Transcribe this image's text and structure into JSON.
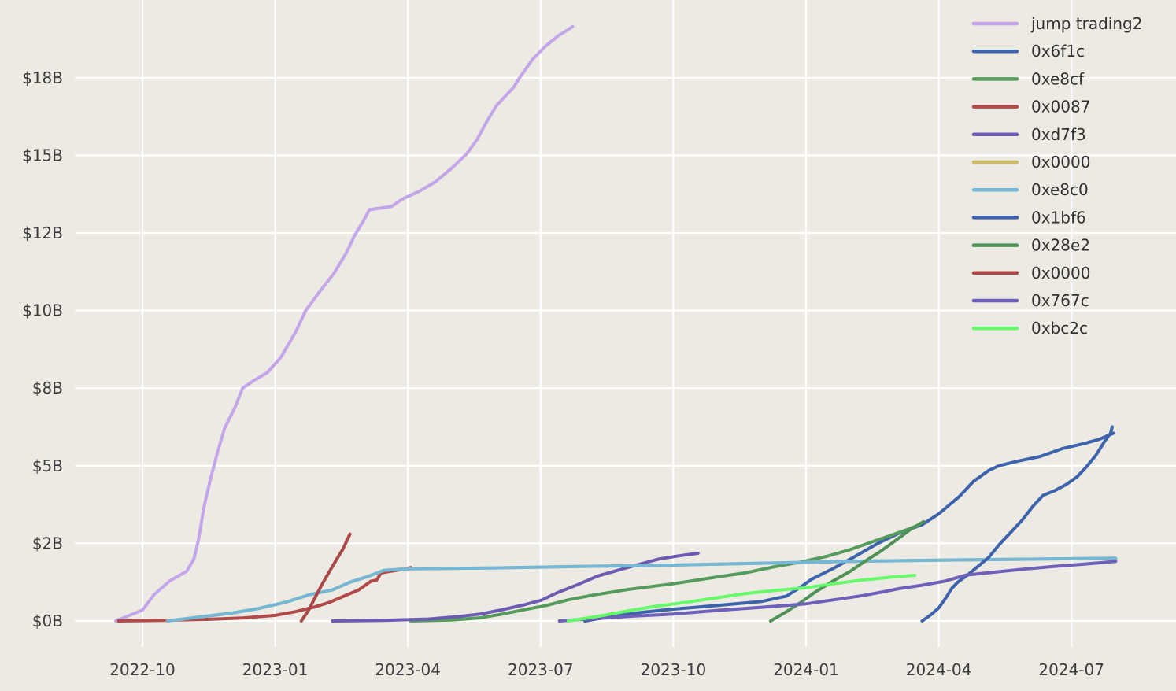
{
  "chart_data": {
    "type": "line",
    "title": "",
    "xlabel": "",
    "ylabel": "",
    "grid": true,
    "legend_position": "upper right",
    "colors": {
      "background": "#ECEAE2",
      "gridline": "#FFFFFF",
      "tick_text": "#3C3C3C",
      "legend_text": "#303030"
    },
    "x_ticks": [
      {
        "date": "2022-10-01",
        "label": "2022-10"
      },
      {
        "date": "2023-01-01",
        "label": "2023-01"
      },
      {
        "date": "2023-04-01",
        "label": "2023-04"
      },
      {
        "date": "2023-07-01",
        "label": "2023-07"
      },
      {
        "date": "2023-10-01",
        "label": "2023-10"
      },
      {
        "date": "2024-01-01",
        "label": "2024-01"
      },
      {
        "date": "2024-04-01",
        "label": "2024-04"
      },
      {
        "date": "2024-07-01",
        "label": "2024-07"
      }
    ],
    "y_ticks": [
      {
        "value": 0,
        "label": "$0B"
      },
      {
        "value": 2.5,
        "label": "$2B"
      },
      {
        "value": 5,
        "label": "$5B"
      },
      {
        "value": 7.5,
        "label": "$8B"
      },
      {
        "value": 10,
        "label": "$10B"
      },
      {
        "value": 12.5,
        "label": "$12B"
      },
      {
        "value": 15,
        "label": "$15B"
      },
      {
        "value": 17.5,
        "label": "$18B"
      }
    ],
    "y_unit": "billions USD cumulative",
    "series": [
      {
        "name": "jump trading2",
        "color": "#C3A6E9",
        "points": [
          [
            "2022-09-13",
            0
          ],
          [
            "2022-10-01",
            0.35
          ],
          [
            "2022-10-09",
            0.85
          ],
          [
            "2022-10-20",
            1.3
          ],
          [
            "2022-11-01",
            1.6
          ],
          [
            "2022-11-06",
            2.0
          ],
          [
            "2022-11-09",
            2.6
          ],
          [
            "2022-11-13",
            3.7
          ],
          [
            "2022-11-17",
            4.5
          ],
          [
            "2022-11-22",
            5.4
          ],
          [
            "2022-11-27",
            6.2
          ],
          [
            "2022-12-04",
            6.9
          ],
          [
            "2022-12-09",
            7.5
          ],
          [
            "2022-12-17",
            7.75
          ],
          [
            "2022-12-26",
            8.0
          ],
          [
            "2023-01-05",
            8.5
          ],
          [
            "2023-01-15",
            9.3
          ],
          [
            "2023-01-22",
            10.0
          ],
          [
            "2023-02-01",
            10.6
          ],
          [
            "2023-02-11",
            11.2
          ],
          [
            "2023-02-20",
            11.9
          ],
          [
            "2023-02-25",
            12.4
          ],
          [
            "2023-03-01",
            12.9
          ],
          [
            "2023-03-05",
            13.25
          ],
          [
            "2023-03-20",
            13.35
          ],
          [
            "2023-03-28",
            13.6
          ],
          [
            "2023-04-09",
            13.85
          ],
          [
            "2023-04-20",
            14.15
          ],
          [
            "2023-05-01",
            14.6
          ],
          [
            "2023-05-11",
            15.05
          ],
          [
            "2023-05-18",
            15.5
          ],
          [
            "2023-05-25",
            16.1
          ],
          [
            "2023-06-01",
            16.6
          ],
          [
            "2023-06-08",
            16.95
          ],
          [
            "2023-06-13",
            17.2
          ],
          [
            "2023-06-17",
            17.5
          ],
          [
            "2023-06-26",
            18.1
          ],
          [
            "2023-07-04",
            18.5
          ],
          [
            "2023-07-13",
            18.85
          ],
          [
            "2023-07-20",
            19.05
          ],
          [
            "2023-07-23",
            19.15
          ]
        ]
      },
      {
        "name": "0x6f1c",
        "color": "#3E63AD",
        "points": [
          [
            "2023-08-01",
            0
          ],
          [
            "2023-08-20",
            0.15
          ],
          [
            "2023-09-10",
            0.28
          ],
          [
            "2023-10-01",
            0.38
          ],
          [
            "2023-11-01",
            0.5
          ],
          [
            "2023-12-01",
            0.63
          ],
          [
            "2023-12-18",
            0.8
          ],
          [
            "2023-12-28",
            1.1
          ],
          [
            "2024-01-05",
            1.35
          ],
          [
            "2024-01-20",
            1.7
          ],
          [
            "2024-02-05",
            2.1
          ],
          [
            "2024-02-20",
            2.5
          ],
          [
            "2024-03-05",
            2.85
          ],
          [
            "2024-03-20",
            3.1
          ],
          [
            "2024-04-01",
            3.45
          ],
          [
            "2024-04-15",
            4.0
          ],
          [
            "2024-04-25",
            4.5
          ],
          [
            "2024-05-05",
            4.85
          ],
          [
            "2024-05-12",
            5.0
          ],
          [
            "2024-05-25",
            5.15
          ],
          [
            "2024-06-10",
            5.3
          ],
          [
            "2024-06-25",
            5.55
          ],
          [
            "2024-07-10",
            5.72
          ],
          [
            "2024-07-20",
            5.85
          ],
          [
            "2024-07-30",
            6.05
          ]
        ]
      },
      {
        "name": "0xe8cf",
        "color": "#559B5E",
        "points": [
          [
            "2023-04-03",
            0
          ],
          [
            "2023-05-01",
            0.03
          ],
          [
            "2023-05-20",
            0.1
          ],
          [
            "2023-06-05",
            0.22
          ],
          [
            "2023-06-20",
            0.36
          ],
          [
            "2023-07-05",
            0.5
          ],
          [
            "2023-07-20",
            0.68
          ],
          [
            "2023-08-05",
            0.82
          ],
          [
            "2023-09-01",
            1.02
          ],
          [
            "2023-10-01",
            1.2
          ],
          [
            "2023-11-01",
            1.42
          ],
          [
            "2023-11-20",
            1.55
          ],
          [
            "2023-12-10",
            1.75
          ],
          [
            "2023-12-28",
            1.9
          ],
          [
            "2024-01-15",
            2.08
          ],
          [
            "2024-02-01",
            2.3
          ],
          [
            "2024-02-18",
            2.58
          ],
          [
            "2024-03-01",
            2.8
          ],
          [
            "2024-03-10",
            2.95
          ],
          [
            "2024-03-18",
            3.1
          ]
        ]
      },
      {
        "name": "0x0087",
        "color": "#B34A4A",
        "points": [
          [
            "2022-09-15",
            0
          ],
          [
            "2022-10-15",
            0.02
          ],
          [
            "2022-11-15",
            0.05
          ],
          [
            "2022-12-10",
            0.1
          ],
          [
            "2023-01-01",
            0.18
          ],
          [
            "2023-01-15",
            0.3
          ],
          [
            "2023-01-28",
            0.45
          ],
          [
            "2023-02-08",
            0.6
          ],
          [
            "2023-02-18",
            0.8
          ],
          [
            "2023-02-28",
            1.0
          ],
          [
            "2023-03-06",
            1.28
          ],
          [
            "2023-03-10",
            1.32
          ],
          [
            "2023-03-13",
            1.55
          ],
          [
            "2023-03-22",
            1.62
          ],
          [
            "2023-04-03",
            1.72
          ]
        ]
      },
      {
        "name": "0xd7f3",
        "color": "#6B5BB2",
        "points": [
          [
            "2023-02-10",
            0
          ],
          [
            "2023-03-15",
            0.02
          ],
          [
            "2023-04-15",
            0.06
          ],
          [
            "2023-05-05",
            0.14
          ],
          [
            "2023-05-20",
            0.22
          ],
          [
            "2023-06-05",
            0.36
          ],
          [
            "2023-06-20",
            0.52
          ],
          [
            "2023-07-01",
            0.66
          ],
          [
            "2023-07-12",
            0.9
          ],
          [
            "2023-07-26",
            1.16
          ],
          [
            "2023-08-10",
            1.45
          ],
          [
            "2023-08-25",
            1.65
          ],
          [
            "2023-09-10",
            1.85
          ],
          [
            "2023-09-22",
            2.0
          ],
          [
            "2023-10-05",
            2.1
          ],
          [
            "2023-10-18",
            2.18
          ]
        ]
      },
      {
        "name": "0x0000",
        "color": "#CDB96A",
        "points": [
          [
            "2022-10-18",
            0
          ],
          [
            "2022-11-05",
            0.1
          ],
          [
            "2022-12-01",
            0.25
          ],
          [
            "2022-12-20",
            0.4
          ],
          [
            "2023-01-08",
            0.6
          ],
          [
            "2023-01-25",
            0.85
          ],
          [
            "2023-02-10",
            1.0
          ],
          [
            "2023-02-22",
            1.25
          ],
          [
            "2023-03-05",
            1.45
          ],
          [
            "2023-03-15",
            1.63
          ],
          [
            "2023-04-01",
            1.68
          ],
          [
            "2023-06-01",
            1.71
          ],
          [
            "2023-08-01",
            1.76
          ],
          [
            "2023-10-01",
            1.8
          ],
          [
            "2023-12-01",
            1.86
          ],
          [
            "2024-02-01",
            1.92
          ],
          [
            "2024-04-01",
            1.96
          ],
          [
            "2024-06-01",
            1.99
          ],
          [
            "2024-08-01",
            2.02
          ]
        ]
      },
      {
        "name": "0xe8c0",
        "color": "#74B7D6",
        "points": [
          [
            "2022-10-18",
            0
          ],
          [
            "2022-11-05",
            0.1
          ],
          [
            "2022-12-01",
            0.25
          ],
          [
            "2022-12-20",
            0.4
          ],
          [
            "2023-01-08",
            0.6
          ],
          [
            "2023-01-25",
            0.85
          ],
          [
            "2023-02-10",
            1.0
          ],
          [
            "2023-02-22",
            1.25
          ],
          [
            "2023-03-05",
            1.45
          ],
          [
            "2023-03-15",
            1.63
          ],
          [
            "2023-04-01",
            1.68
          ],
          [
            "2023-06-01",
            1.71
          ],
          [
            "2023-08-01",
            1.76
          ],
          [
            "2023-10-01",
            1.8
          ],
          [
            "2023-12-01",
            1.86
          ],
          [
            "2024-02-01",
            1.92
          ],
          [
            "2024-04-01",
            1.96
          ],
          [
            "2024-06-01",
            1.99
          ],
          [
            "2024-08-01",
            2.02
          ]
        ]
      },
      {
        "name": "0x1bf6",
        "color": "#3E63AD",
        "points": [
          [
            "2024-03-20",
            0
          ],
          [
            "2024-03-26",
            0.2
          ],
          [
            "2024-04-01",
            0.42
          ],
          [
            "2024-04-06",
            0.75
          ],
          [
            "2024-04-10",
            1.05
          ],
          [
            "2024-04-14",
            1.25
          ],
          [
            "2024-04-20",
            1.45
          ],
          [
            "2024-04-26",
            1.68
          ],
          [
            "2024-05-05",
            2.05
          ],
          [
            "2024-05-12",
            2.45
          ],
          [
            "2024-05-20",
            2.85
          ],
          [
            "2024-05-28",
            3.25
          ],
          [
            "2024-06-05",
            3.7
          ],
          [
            "2024-06-12",
            4.05
          ],
          [
            "2024-06-20",
            4.2
          ],
          [
            "2024-06-28",
            4.4
          ],
          [
            "2024-07-05",
            4.65
          ],
          [
            "2024-07-12",
            5.0
          ],
          [
            "2024-07-18",
            5.35
          ],
          [
            "2024-07-24",
            5.8
          ],
          [
            "2024-07-28",
            6.05
          ],
          [
            "2024-07-29",
            6.25
          ]
        ]
      },
      {
        "name": "0x28e2",
        "color": "#4F9257",
        "points": [
          [
            "2023-12-07",
            0
          ],
          [
            "2023-12-18",
            0.3
          ],
          [
            "2023-12-28",
            0.6
          ],
          [
            "2024-01-08",
            0.95
          ],
          [
            "2024-01-20",
            1.3
          ],
          [
            "2024-02-01",
            1.6
          ],
          [
            "2024-02-12",
            1.95
          ],
          [
            "2024-02-22",
            2.25
          ],
          [
            "2024-03-02",
            2.6
          ],
          [
            "2024-03-12",
            2.95
          ],
          [
            "2024-03-21",
            3.2
          ]
        ]
      },
      {
        "name": "0x0000",
        "color": "#AB4848",
        "points": [
          [
            "2023-01-19",
            0
          ],
          [
            "2023-01-24",
            0.35
          ],
          [
            "2023-01-29",
            0.8
          ],
          [
            "2023-02-03",
            1.2
          ],
          [
            "2023-02-08",
            1.6
          ],
          [
            "2023-02-13",
            2.0
          ],
          [
            "2023-02-17",
            2.3
          ],
          [
            "2023-02-20",
            2.6
          ],
          [
            "2023-02-22",
            2.8
          ]
        ]
      },
      {
        "name": "0x767c",
        "color": "#6F60BA",
        "points": [
          [
            "2023-07-14",
            0
          ],
          [
            "2023-08-10",
            0.08
          ],
          [
            "2023-09-05",
            0.16
          ],
          [
            "2023-10-01",
            0.22
          ],
          [
            "2023-11-01",
            0.34
          ],
          [
            "2023-12-01",
            0.44
          ],
          [
            "2024-01-01",
            0.55
          ],
          [
            "2024-01-20",
            0.68
          ],
          [
            "2024-02-10",
            0.82
          ],
          [
            "2024-02-25",
            0.95
          ],
          [
            "2024-03-05",
            1.05
          ],
          [
            "2024-03-20",
            1.15
          ],
          [
            "2024-04-05",
            1.28
          ],
          [
            "2024-04-20",
            1.48
          ],
          [
            "2024-05-10",
            1.58
          ],
          [
            "2024-06-01",
            1.68
          ],
          [
            "2024-06-20",
            1.76
          ],
          [
            "2024-07-10",
            1.83
          ],
          [
            "2024-08-01",
            1.92
          ]
        ]
      },
      {
        "name": "0xbc2c",
        "color": "#66F96A",
        "points": [
          [
            "2023-07-20",
            0
          ],
          [
            "2023-08-10",
            0.15
          ],
          [
            "2023-09-01",
            0.33
          ],
          [
            "2023-09-20",
            0.48
          ],
          [
            "2023-10-10",
            0.6
          ],
          [
            "2023-11-01",
            0.75
          ],
          [
            "2023-11-20",
            0.88
          ],
          [
            "2023-12-10",
            0.98
          ],
          [
            "2024-01-01",
            1.07
          ],
          [
            "2024-01-20",
            1.2
          ],
          [
            "2024-02-10",
            1.32
          ],
          [
            "2024-03-01",
            1.42
          ],
          [
            "2024-03-15",
            1.47
          ]
        ]
      }
    ]
  }
}
